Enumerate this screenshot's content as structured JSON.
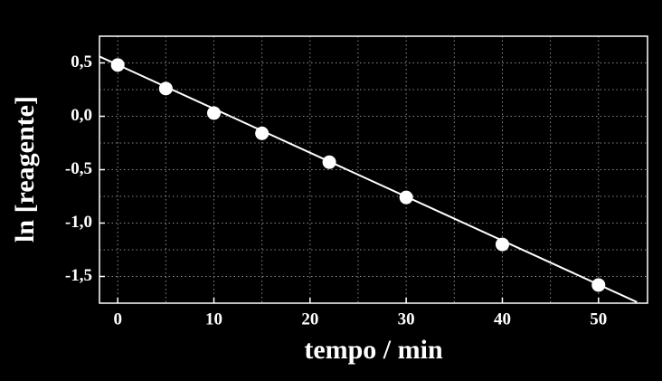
{
  "chart_data": {
    "type": "scatter",
    "x_label": "tempo / min",
    "y_label": "ln [reagente]",
    "points": {
      "color": "#ffffff",
      "x": [
        0,
        5,
        10,
        15,
        22,
        30,
        40,
        50
      ],
      "values": [
        0.48,
        0.26,
        0.03,
        -0.16,
        -0.43,
        -0.76,
        -1.2,
        -1.58
      ]
    },
    "fit_line": {
      "color": "#ffffff",
      "x": [
        -1.9,
        54
      ],
      "values": [
        0.56,
        -1.74
      ]
    },
    "xlim": [
      -1.9,
      55.1
    ],
    "ylim": [
      -1.75,
      0.75
    ],
    "xticks": [
      0,
      10,
      20,
      30,
      40,
      50
    ],
    "xminorticks": [
      5,
      15,
      25,
      35,
      45
    ],
    "yticks": [
      {
        "value": 0.5,
        "label": "0,5"
      },
      {
        "value": 0.0,
        "label": "0,0"
      },
      {
        "value": -0.5,
        "label": "-0,5"
      },
      {
        "value": -1.0,
        "label": "-1,0"
      },
      {
        "value": -1.5,
        "label": "-1,5"
      }
    ],
    "yminorticks": [
      0.25,
      -0.25,
      -0.75,
      -1.25
    ],
    "grid": true
  }
}
